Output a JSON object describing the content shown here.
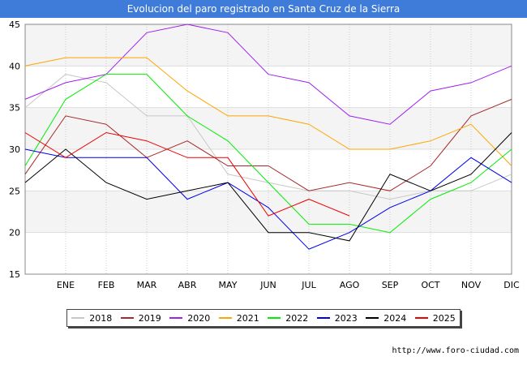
{
  "title": "Evolucion del paro registrado en Santa Cruz de la Sierra",
  "source": "http://www.foro-ciudad.com",
  "chart_data": {
    "type": "line",
    "title": "Evolucion del paro registrado en Santa Cruz de la Sierra",
    "x_categories": [
      "",
      "ENE",
      "FEB",
      "MAR",
      "ABR",
      "MAY",
      "JUN",
      "JUL",
      "AGO",
      "SEP",
      "OCT",
      "NOV",
      "DIC"
    ],
    "ylim": [
      15,
      45
    ],
    "yticks": [
      15,
      20,
      25,
      30,
      35,
      40,
      45
    ],
    "grid": true,
    "legend_position": "bottom",
    "series": [
      {
        "name": "2018",
        "color": "#c8c8c8",
        "values": [
          35,
          39,
          38,
          34,
          34,
          27,
          26,
          25,
          25,
          24,
          25,
          25,
          27
        ]
      },
      {
        "name": "2019",
        "color": "#a52a2a",
        "values": [
          27,
          34,
          33,
          29,
          31,
          28,
          28,
          25,
          26,
          25,
          28,
          34,
          36
        ]
      },
      {
        "name": "2020",
        "color": "#a020f0",
        "values": [
          36,
          38,
          39,
          44,
          45,
          44,
          39,
          38,
          34,
          33,
          37,
          38,
          40
        ]
      },
      {
        "name": "2021",
        "color": "#ffa500",
        "values": [
          40,
          41,
          41,
          41,
          37,
          34,
          34,
          33,
          30,
          30,
          31,
          33,
          28
        ]
      },
      {
        "name": "2022",
        "color": "#00ee00",
        "values": [
          28,
          36,
          39,
          39,
          34,
          31,
          26,
          21,
          21,
          20,
          24,
          26,
          30
        ]
      },
      {
        "name": "2023",
        "color": "#0000ee",
        "values": [
          30,
          29,
          29,
          29,
          24,
          26,
          23,
          18,
          20,
          23,
          25,
          29,
          26
        ]
      },
      {
        "name": "2024",
        "color": "#000000",
        "values": [
          26,
          30,
          26,
          24,
          25,
          26,
          20,
          20,
          19,
          27,
          25,
          27,
          32
        ]
      },
      {
        "name": "2025",
        "color": "#ee0000",
        "values": [
          32,
          29,
          32,
          31,
          29,
          29,
          22,
          24,
          22,
          null,
          null,
          null,
          null
        ]
      }
    ]
  }
}
